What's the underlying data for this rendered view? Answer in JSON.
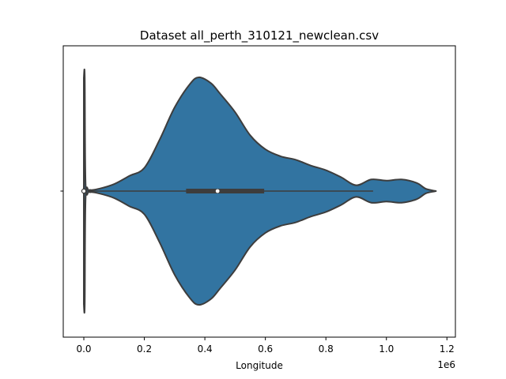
{
  "chart_data": {
    "type": "violin",
    "title": "Dataset all_perth_310121_newclean.csv",
    "xlabel": "Longitude",
    "ylabel": "",
    "x_offset_text": "1e6",
    "xlim": [
      -0.068,
      1.228
    ],
    "x_ticks": [
      0.0,
      0.2,
      0.4,
      0.6,
      0.8,
      1.0,
      1.2
    ],
    "x_tick_labels": [
      "0.0",
      "0.2",
      "0.4",
      "0.6",
      "0.8",
      "1.0",
      "1.2"
    ],
    "grid": false,
    "legend": false,
    "fill_color": "#3274a1",
    "edge_color": "#3d3d3d",
    "density_profile": [
      {
        "x": 0.0,
        "h": 0.98
      },
      {
        "x": 0.003,
        "h": 0.98
      },
      {
        "x": 0.006,
        "h": 0.05
      },
      {
        "x": 0.02,
        "h": 0.01
      },
      {
        "x": 0.05,
        "h": 0.02
      },
      {
        "x": 0.1,
        "h": 0.06
      },
      {
        "x": 0.15,
        "h": 0.13
      },
      {
        "x": 0.2,
        "h": 0.2
      },
      {
        "x": 0.25,
        "h": 0.44
      },
      {
        "x": 0.3,
        "h": 0.72
      },
      {
        "x": 0.35,
        "h": 0.92
      },
      {
        "x": 0.38,
        "h": 0.98
      },
      {
        "x": 0.42,
        "h": 0.93
      },
      {
        "x": 0.45,
        "h": 0.84
      },
      {
        "x": 0.5,
        "h": 0.68
      },
      {
        "x": 0.55,
        "h": 0.48
      },
      {
        "x": 0.6,
        "h": 0.36
      },
      {
        "x": 0.65,
        "h": 0.3
      },
      {
        "x": 0.7,
        "h": 0.27
      },
      {
        "x": 0.75,
        "h": 0.22
      },
      {
        "x": 0.8,
        "h": 0.18
      },
      {
        "x": 0.85,
        "h": 0.12
      },
      {
        "x": 0.9,
        "h": 0.05
      },
      {
        "x": 0.95,
        "h": 0.1
      },
      {
        "x": 1.0,
        "h": 0.09
      },
      {
        "x": 1.05,
        "h": 0.1
      },
      {
        "x": 1.1,
        "h": 0.07
      },
      {
        "x": 1.13,
        "h": 0.02
      },
      {
        "x": 1.16,
        "h": 0.002
      }
    ],
    "box": {
      "q1": 0.338,
      "median": 0.442,
      "q3": 0.596,
      "whisker_low": 0.0,
      "whisker_high": 0.956
    }
  }
}
